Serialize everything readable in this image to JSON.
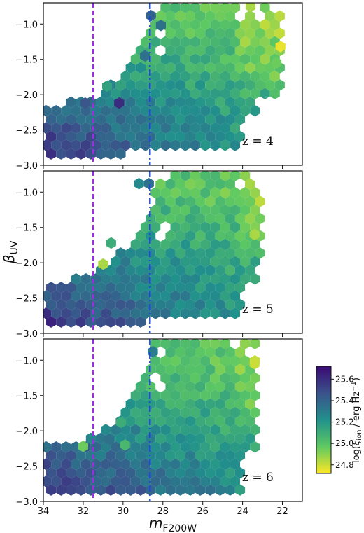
{
  "chart_data": {
    "type": "heatmap",
    "subtype": "hexbin",
    "shared_xlabel": "m_F200W",
    "shared_ylabel": "β_UV",
    "xlabel_main": "m",
    "xlabel_sub": "F200W",
    "ylabel_main": "β",
    "ylabel_sub": "UV",
    "xlim": [
      34,
      21
    ],
    "ylim": [
      -3.0,
      -0.7
    ],
    "x_inverted": true,
    "x_ticks": [
      34,
      32,
      30,
      28,
      26,
      24,
      22
    ],
    "y_ticks": [
      -3.0,
      -2.5,
      -2.0,
      -1.5,
      -1.0
    ],
    "y_tick_labels": [
      "−3.0",
      "−2.5",
      "−2.0",
      "−1.5",
      "−1.0"
    ],
    "vertical_lines": [
      {
        "x": 31.5,
        "style": "dashed",
        "color": "#9b2fe0"
      },
      {
        "x": 28.65,
        "style": "dashdot",
        "color": "#1f45d6"
      }
    ],
    "colorbar": {
      "label": "log(ξ_ion / erg Hz⁻¹)",
      "label_main": "log(",
      "label_xi": "ξ",
      "label_sub": "ion",
      "label_rest": " / erg Hz",
      "label_sup": "−1",
      "label_close": ")",
      "range": [
        24.72,
        25.72
      ],
      "ticks": [
        24.8,
        25.0,
        25.2,
        25.4,
        25.6
      ],
      "tick_labels": [
        "24.8",
        "25.0",
        "25.2",
        "25.4",
        "25.6"
      ],
      "colormap": "viridis_r"
    },
    "panels": [
      {
        "label": "z = 4",
        "bright_edge_x": 28.5,
        "bright_top_beta": -0.7,
        "faint_top_beta": -2.12,
        "bottom_beta": -2.88,
        "faint_limit_x": 33.9,
        "bright_limit_x": 21.9,
        "isolated_bins": [
          {
            "x": 31.9,
            "y": -2.12,
            "v": 25.45
          },
          {
            "x": 30.2,
            "y": -2.12,
            "v": 25.6
          },
          {
            "x": 30.8,
            "y": -1.88,
            "v": 25.15
          },
          {
            "x": 28.9,
            "y": -1.45,
            "v": 25.35
          },
          {
            "x": 28.6,
            "y": -0.88,
            "v": 25.4
          },
          {
            "x": 28.1,
            "y": -1.02,
            "v": 25.35
          },
          {
            "x": 22.1,
            "y": -1.32,
            "v": 24.75
          },
          {
            "x": 23.6,
            "y": -0.75,
            "v": 24.85
          },
          {
            "x": 22.3,
            "y": -1.55,
            "v": 24.95
          }
        ]
      },
      {
        "label": "z = 5",
        "bright_edge_x": 28.3,
        "bright_top_beta": -0.75,
        "faint_top_beta": -2.25,
        "bottom_beta": -2.9,
        "faint_limit_x": 33.9,
        "bright_limit_x": 23.0,
        "isolated_bins": [
          {
            "x": 29.6,
            "y": -0.62,
            "v": 25.35
          },
          {
            "x": 29.2,
            "y": -0.88,
            "v": 25.25
          },
          {
            "x": 28.7,
            "y": -0.88,
            "v": 25.35
          },
          {
            "x": 30.6,
            "y": -1.72,
            "v": 25.1
          },
          {
            "x": 31.0,
            "y": -2.02,
            "v": 24.85
          },
          {
            "x": 23.4,
            "y": -1.6,
            "v": 24.85
          }
        ]
      },
      {
        "label": "z = 6",
        "bright_edge_x": 28.5,
        "bright_top_beta": -0.7,
        "faint_top_beta": -2.2,
        "bottom_beta": -2.95,
        "faint_limit_x": 33.9,
        "bright_limit_x": 23.2,
        "isolated_bins": [
          {
            "x": 30.1,
            "y": -1.88,
            "v": 25.1
          },
          {
            "x": 30.7,
            "y": -2.12,
            "v": 25.35
          },
          {
            "x": 29.9,
            "y": -2.2,
            "v": 25.05
          },
          {
            "x": 32.0,
            "y": -2.22,
            "v": 24.95
          },
          {
            "x": 28.5,
            "y": -0.88,
            "v": 25.3
          },
          {
            "x": 23.4,
            "y": -1.05,
            "v": 24.8
          }
        ]
      }
    ]
  }
}
